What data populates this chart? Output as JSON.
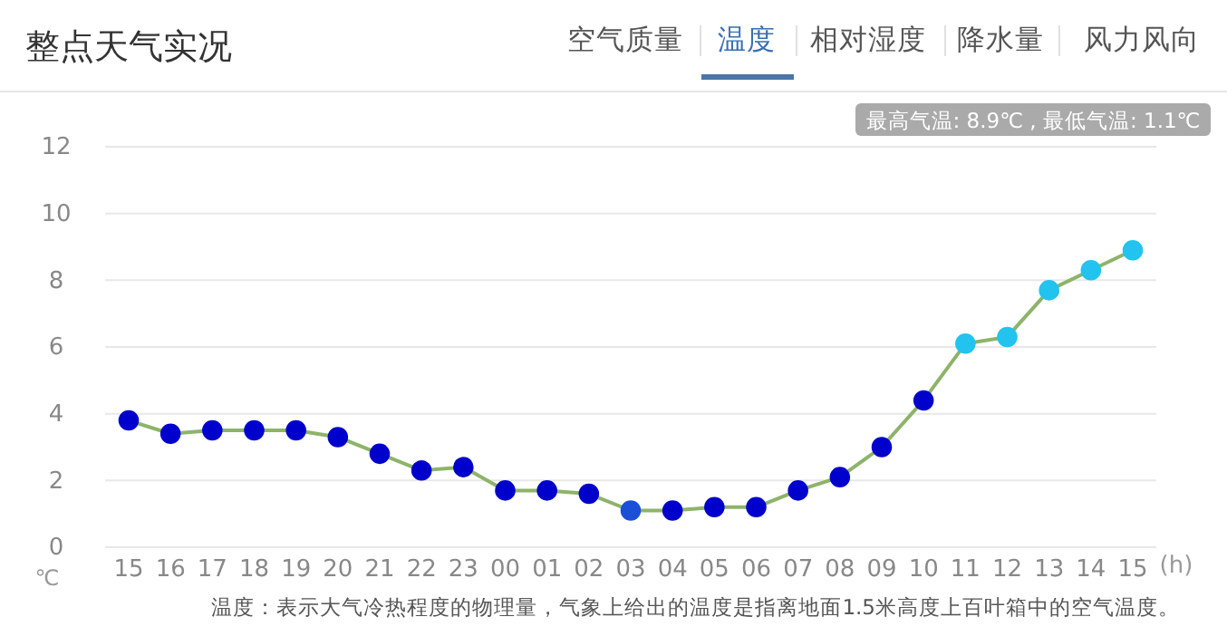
{
  "chart_data": {
    "type": "line",
    "title": "整点天气实况",
    "xlabel": "(h)",
    "ylabel": "℃",
    "annotations": [
      "空气质量",
      "温度",
      "相对湿度",
      "降水量",
      "风力风向",
      "最高气温: 8.9℃ , 最低气温: 1.1℃",
      "温度：表示大气冷热程度的物理量，气象上给出的温度是指离地面1.5米高度上百叶箱中的空气温度。"
    ],
    "categories": [
      "15",
      "16",
      "17",
      "18",
      "19",
      "20",
      "21",
      "22",
      "23",
      "00",
      "01",
      "02",
      "03",
      "04",
      "05",
      "06",
      "07",
      "08",
      "09",
      "10",
      "11",
      "12",
      "13",
      "14",
      "15"
    ],
    "series": [
      {
        "color": "#8db46a",
        "values": [
          3.8,
          3.4,
          3.5,
          3.5,
          3.5,
          3.3,
          2.8,
          2.3,
          2.4,
          1.7,
          1.7,
          1.6,
          1.1,
          1.1,
          1.2,
          1.2,
          1.7,
          2.1,
          3.0,
          4.4,
          6.1,
          6.3,
          7.7,
          8.3,
          8.9
        ],
        "colors": [
          "#0000cc",
          "#0000cc",
          "#0000cc",
          "#0000cc",
          "#0000cc",
          "#0000cc",
          "#0000cc",
          "#0000cc",
          "#0000cc",
          "#0000cc",
          "#0000cc",
          "#0000cc",
          "#1a4fd8",
          "#0000cc",
          "#0000cc",
          "#0000cc",
          "#0000cc",
          "#0000cc",
          "#0000cc",
          "#0000cc",
          "#22c3ee",
          "#22c3ee",
          "#22c3ee",
          "#22c3ee",
          "#22c3ee"
        ]
      }
    ],
    "ylim": [
      0,
      12
    ],
    "yticks": [
      0,
      2,
      4,
      6,
      8,
      10,
      12
    ],
    "grid": "y",
    "marker": "circle",
    "line_style": "solid"
  }
}
